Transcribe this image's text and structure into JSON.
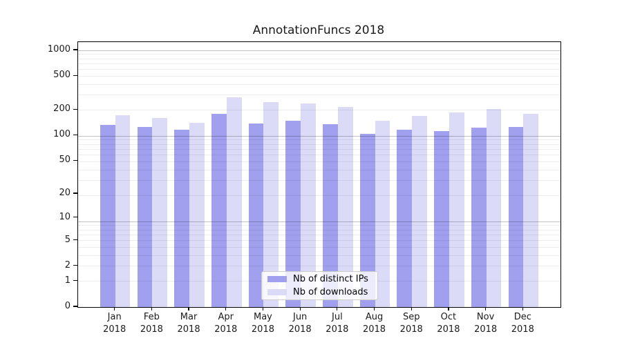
{
  "title": "AnnotationFuncs 2018",
  "legend": {
    "items": [
      {
        "label": "Nb of distinct IPs",
        "color": "#a0a0ef"
      },
      {
        "label": "Nb of downloads",
        "color": "#dbdbf7"
      }
    ]
  },
  "axes": {
    "y_tick_labels": [
      "0",
      "1",
      "2",
      "5",
      "10",
      "20",
      "50",
      "100",
      "200",
      "500",
      "1000"
    ],
    "x_year_label": "2018"
  },
  "chart_data": {
    "type": "bar",
    "title": "AnnotationFuncs 2018",
    "categories": [
      "Jan",
      "Feb",
      "Mar",
      "Apr",
      "May",
      "Jun",
      "Jul",
      "Aug",
      "Sep",
      "Oct",
      "Nov",
      "Dec"
    ],
    "category_year": "2018",
    "series": [
      {
        "name": "Nb of distinct IPs",
        "color": "#a0a0ef",
        "values": [
          134,
          126,
          118,
          179,
          138,
          150,
          136,
          104,
          117,
          112,
          123,
          126
        ]
      },
      {
        "name": "Nb of downloads",
        "color": "#dbdbf7",
        "values": [
          174,
          161,
          141,
          282,
          246,
          238,
          217,
          151,
          170,
          187,
          206,
          179
        ]
      }
    ],
    "ylabel": "",
    "xlabel": "",
    "y_scale": "log10(value+1)",
    "y_ticks": [
      0,
      1,
      2,
      5,
      10,
      20,
      50,
      100,
      200,
      500,
      1000
    ],
    "y_domain_max": 1249,
    "grid": true,
    "legend_position": "lower center"
  },
  "colors": {
    "bar_ips": "#a0a0ef",
    "bar_downloads": "#dbdbf7",
    "grid_minor": "rgba(0,0,0,0.07)",
    "grid_major": "rgba(0,0,0,0.24)",
    "spine": "#000000",
    "text": "#1a1a1a",
    "legend_border": "#cccccc",
    "legend_bg": "rgba(255,255,255,0.8)"
  }
}
